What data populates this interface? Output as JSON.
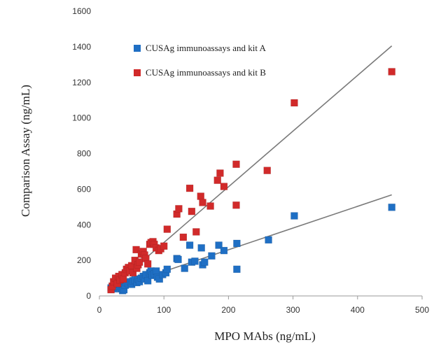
{
  "chart_data": {
    "type": "scatter",
    "title": "",
    "xlabel": "MPO MAbs (ng/mL)",
    "ylabel": "Comparison Assay (ng/mL)",
    "xlim": [
      0,
      500
    ],
    "ylim": [
      0,
      1600
    ],
    "xticks": [
      0,
      100,
      200,
      300,
      400,
      500
    ],
    "yticks": [
      0,
      200,
      400,
      600,
      800,
      1000,
      1200,
      1400,
      1600
    ],
    "grid": false,
    "legend_position": "top-left",
    "series": [
      {
        "name": "CUSAg immunoassays and kit A",
        "color": "#1f6fc4",
        "trendline": {
          "x": [
            20,
            453
          ],
          "y": [
            40,
            568
          ]
        },
        "points": [
          [
            18,
            45
          ],
          [
            20,
            55
          ],
          [
            22,
            40
          ],
          [
            25,
            60
          ],
          [
            27,
            50
          ],
          [
            28,
            70
          ],
          [
            30,
            55
          ],
          [
            32,
            65
          ],
          [
            33,
            40
          ],
          [
            35,
            45
          ],
          [
            36,
            30
          ],
          [
            38,
            35
          ],
          [
            40,
            60
          ],
          [
            42,
            75
          ],
          [
            45,
            70
          ],
          [
            48,
            80
          ],
          [
            50,
            65
          ],
          [
            52,
            85
          ],
          [
            55,
            90
          ],
          [
            58,
            75
          ],
          [
            60,
            95
          ],
          [
            62,
            80
          ],
          [
            65,
            100
          ],
          [
            68,
            110
          ],
          [
            70,
            95
          ],
          [
            72,
            120
          ],
          [
            75,
            85
          ],
          [
            78,
            130
          ],
          [
            80,
            140
          ],
          [
            82,
            115
          ],
          [
            85,
            125
          ],
          [
            88,
            140
          ],
          [
            90,
            105
          ],
          [
            93,
            95
          ],
          [
            98,
            120
          ],
          [
            103,
            130
          ],
          [
            105,
            150
          ],
          [
            120,
            210
          ],
          [
            122,
            205
          ],
          [
            132,
            155
          ],
          [
            140,
            285
          ],
          [
            143,
            190
          ],
          [
            148,
            195
          ],
          [
            158,
            270
          ],
          [
            160,
            175
          ],
          [
            163,
            190
          ],
          [
            174,
            225
          ],
          [
            185,
            285
          ],
          [
            193,
            255
          ],
          [
            213,
            295
          ],
          [
            213,
            150
          ],
          [
            262,
            315
          ],
          [
            302,
            450
          ],
          [
            453,
            498
          ]
        ]
      },
      {
        "name": "CUSAg immunoassays and kit B",
        "color": "#d12a2a",
        "trendline": {
          "x": [
            20,
            453
          ],
          "y": [
            50,
            1405
          ]
        },
        "points": [
          [
            18,
            35
          ],
          [
            20,
            55
          ],
          [
            22,
            80
          ],
          [
            25,
            100
          ],
          [
            28,
            70
          ],
          [
            30,
            110
          ],
          [
            32,
            90
          ],
          [
            35,
            120
          ],
          [
            37,
            95
          ],
          [
            40,
            130
          ],
          [
            42,
            150
          ],
          [
            45,
            160
          ],
          [
            47,
            140
          ],
          [
            50,
            170
          ],
          [
            52,
            130
          ],
          [
            55,
            200
          ],
          [
            57,
            260
          ],
          [
            58,
            155
          ],
          [
            60,
            175
          ],
          [
            62,
            190
          ],
          [
            65,
            235
          ],
          [
            68,
            250
          ],
          [
            70,
            230
          ],
          [
            72,
            210
          ],
          [
            75,
            180
          ],
          [
            78,
            290
          ],
          [
            80,
            300
          ],
          [
            83,
            305
          ],
          [
            85,
            290
          ],
          [
            88,
            270
          ],
          [
            92,
            255
          ],
          [
            95,
            265
          ],
          [
            100,
            280
          ],
          [
            105,
            375
          ],
          [
            120,
            460
          ],
          [
            123,
            490
          ],
          [
            130,
            330
          ],
          [
            140,
            605
          ],
          [
            143,
            475
          ],
          [
            150,
            360
          ],
          [
            157,
            560
          ],
          [
            160,
            525
          ],
          [
            172,
            505
          ],
          [
            183,
            650
          ],
          [
            187,
            690
          ],
          [
            193,
            615
          ],
          [
            212,
            740
          ],
          [
            212,
            510
          ],
          [
            260,
            705
          ],
          [
            302,
            1085
          ],
          [
            453,
            1260
          ]
        ]
      }
    ]
  }
}
